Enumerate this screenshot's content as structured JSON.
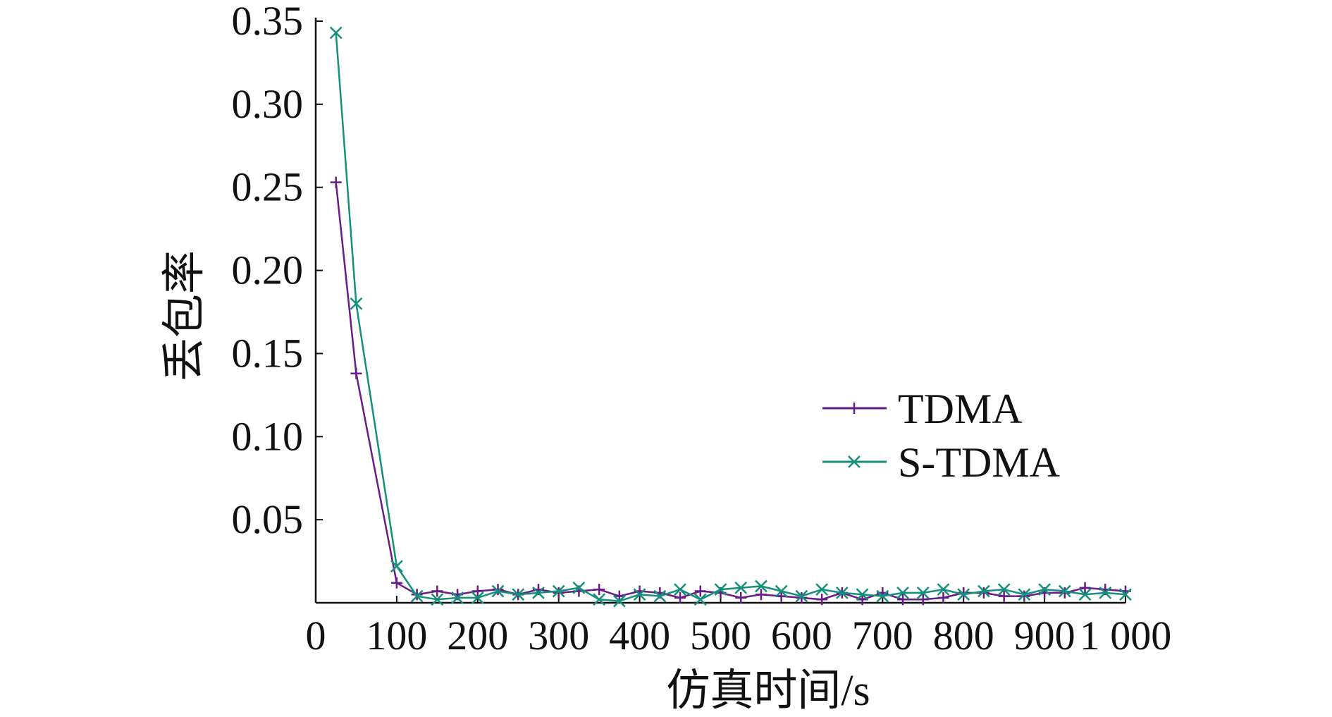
{
  "chart_data": {
    "type": "line",
    "title": "",
    "xlabel": "仿真时间/s",
    "ylabel": "丢包率",
    "xlim": [
      0,
      1000
    ],
    "ylim": [
      0,
      0.35
    ],
    "xticks": [
      0,
      100,
      200,
      300,
      400,
      500,
      600,
      700,
      800,
      900,
      1000
    ],
    "xtick_labels": [
      "0",
      "100",
      "200",
      "300",
      "400",
      "500",
      "600",
      "700",
      "800",
      "900",
      "1 000"
    ],
    "yticks": [
      0.05,
      0.1,
      0.15,
      0.2,
      0.25,
      0.3,
      0.35
    ],
    "ytick_labels": [
      "0.05",
      "0.10",
      "0.15",
      "0.20",
      "0.25",
      "0.30",
      "0.35"
    ],
    "grid": false,
    "legend_position": "right",
    "x": [
      25,
      50,
      100,
      125,
      150,
      175,
      200,
      225,
      250,
      275,
      300,
      325,
      350,
      375,
      400,
      425,
      450,
      475,
      500,
      525,
      550,
      575,
      600,
      625,
      650,
      675,
      700,
      725,
      750,
      775,
      800,
      825,
      850,
      875,
      900,
      925,
      950,
      975,
      1000
    ],
    "series": [
      {
        "name": "TDMA",
        "color": "#6a1b8a",
        "marker": "plus",
        "values": [
          0.253,
          0.138,
          0.012,
          0.005,
          0.007,
          0.005,
          0.007,
          0.008,
          0.005,
          0.008,
          0.006,
          0.007,
          0.008,
          0.004,
          0.007,
          0.006,
          0.003,
          0.007,
          0.006,
          0.003,
          0.005,
          0.004,
          0.003,
          0.002,
          0.006,
          0.002,
          0.006,
          0.002,
          0.002,
          0.003,
          0.006,
          0.006,
          0.004,
          0.004,
          0.006,
          0.006,
          0.009,
          0.008,
          0.007
        ]
      },
      {
        "name": "S-TDMA",
        "color": "#14907a",
        "marker": "x",
        "values": [
          0.343,
          0.18,
          0.022,
          0.004,
          0.002,
          0.003,
          0.003,
          0.007,
          0.005,
          0.006,
          0.007,
          0.009,
          0.002,
          0.001,
          0.005,
          0.004,
          0.008,
          0.002,
          0.008,
          0.009,
          0.01,
          0.007,
          0.004,
          0.008,
          0.006,
          0.005,
          0.004,
          0.006,
          0.006,
          0.008,
          0.005,
          0.007,
          0.008,
          0.005,
          0.008,
          0.007,
          0.005,
          0.006,
          0.005
        ]
      }
    ]
  }
}
